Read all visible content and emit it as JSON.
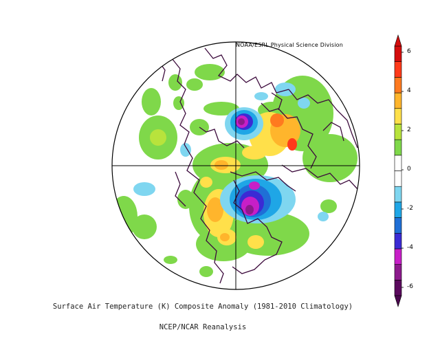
{
  "credit": "NOAA/ESRL Physical Science Division",
  "caption_line1": "Surface Air Temperature (K) Composite Anomaly (1981-2010 Climatology)",
  "caption_line2": "NCEP/NCAR Reanalysis",
  "colorbar": {
    "ticks": [
      "6",
      "4",
      "2",
      "0",
      "-2",
      "-4",
      "-6"
    ],
    "colors": [
      "#5b0a5e",
      "#8c1a8c",
      "#c71fc7",
      "#3b2bd4",
      "#1f6fd6",
      "#1fa6e6",
      "#7fd6f0",
      "#ffffff",
      "#ffffff",
      "#7fd84a",
      "#b8e33c",
      "#ffe04a",
      "#ffb52c",
      "#ff7a1f",
      "#ff3a1a",
      "#d40d0d"
    ]
  }
}
